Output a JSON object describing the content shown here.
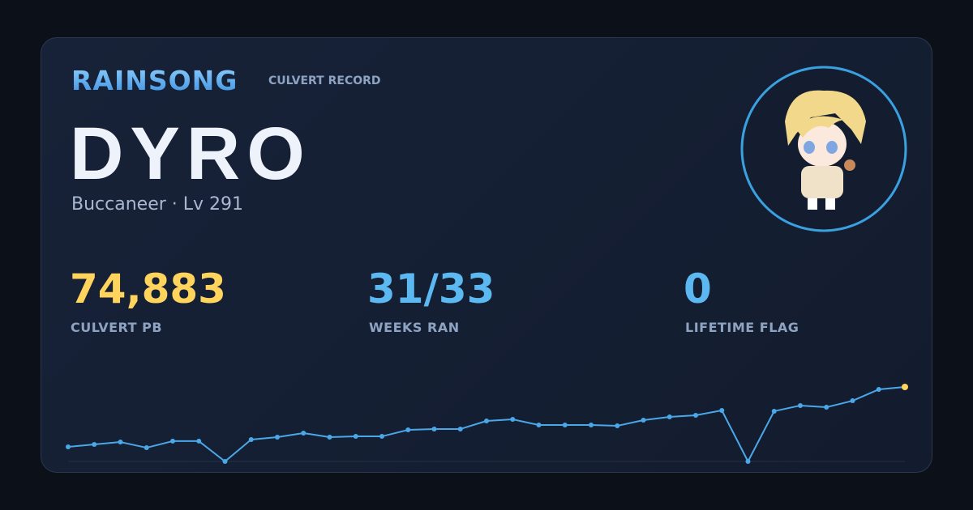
{
  "header": {
    "brand": "RAINSONG",
    "subtitle": "CULVERT RECORD"
  },
  "player": {
    "name": "DYRO",
    "details": "Buccaneer · Lv 291"
  },
  "stats": [
    {
      "value": "74,883",
      "label": "CULVERT PB",
      "color": "#ffd45c"
    },
    {
      "value": "31/33",
      "label": "WEEKS RAN",
      "color": "#5bb8f0"
    },
    {
      "value": "0",
      "label": "LIFETIME FLAG",
      "color": "#5bb8f0"
    }
  ],
  "chart_data": {
    "type": "line",
    "color": "#4aa8e8",
    "highlight_color": "#ffd45c",
    "values": [
      14650,
      17100,
      19500,
      13800,
      20400,
      20400,
      0,
      22000,
      24400,
      28500,
      24400,
      25200,
      25200,
      31700,
      32600,
      32600,
      40700,
      42300,
      36600,
      36600,
      36600,
      35800,
      41500,
      44800,
      46400,
      51300,
      0,
      50500,
      56200,
      54500,
      61000,
      72400,
      74883
    ]
  }
}
